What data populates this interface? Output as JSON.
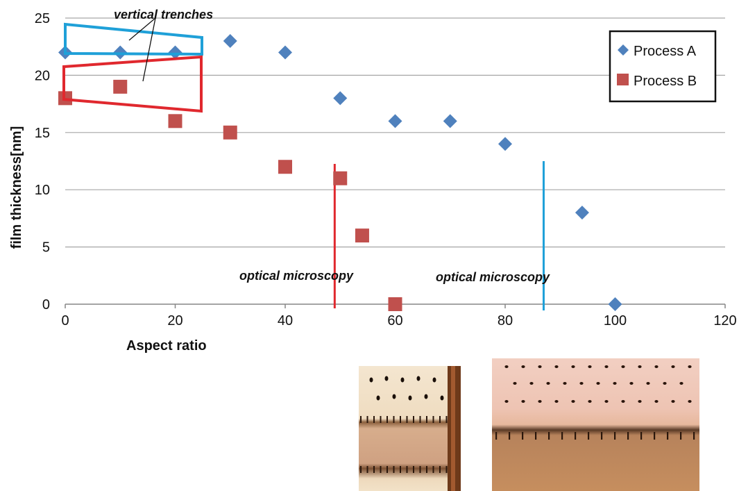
{
  "chart_data": {
    "type": "scatter",
    "xlabel": "Aspect ratio",
    "ylabel": "film thickness[nm]",
    "xlim": [
      0,
      120
    ],
    "ylim": [
      0,
      25
    ],
    "x_ticks": [
      0,
      20,
      40,
      60,
      80,
      100,
      120
    ],
    "y_ticks": [
      0,
      5,
      10,
      15,
      20,
      25
    ],
    "grid": "horizontal",
    "legend_position": "top-right",
    "series": [
      {
        "name": "Process A",
        "marker": "diamond",
        "color": "#4f81bd",
        "points": [
          [
            0,
            22
          ],
          [
            10,
            22
          ],
          [
            20,
            22
          ],
          [
            30,
            23
          ],
          [
            40,
            22
          ],
          [
            50,
            18
          ],
          [
            60,
            16
          ],
          [
            70,
            16
          ],
          [
            80,
            14
          ],
          [
            94,
            8
          ],
          [
            100,
            0
          ]
        ]
      },
      {
        "name": "Process B",
        "marker": "square",
        "color": "#c0504d",
        "points": [
          [
            0,
            18
          ],
          [
            10,
            19
          ],
          [
            20,
            16
          ],
          [
            30,
            15
          ],
          [
            40,
            12
          ],
          [
            50,
            11
          ],
          [
            54,
            6
          ],
          [
            60,
            0
          ]
        ]
      }
    ],
    "annotations": {
      "trenches_label": "vertical trenches",
      "optical_red_label": "optical microscopy",
      "optical_blue_label": "optical microscopy",
      "red_limit_x": 49,
      "blue_limit_x": 87
    },
    "colors": {
      "grid": "#a6a6a6",
      "axis": "#868686",
      "red_line": "#e0282e",
      "blue_line": "#1fa0d8"
    }
  },
  "photos": [
    {
      "name": "microscopy-photo-left"
    },
    {
      "name": "microscopy-photo-right"
    }
  ]
}
